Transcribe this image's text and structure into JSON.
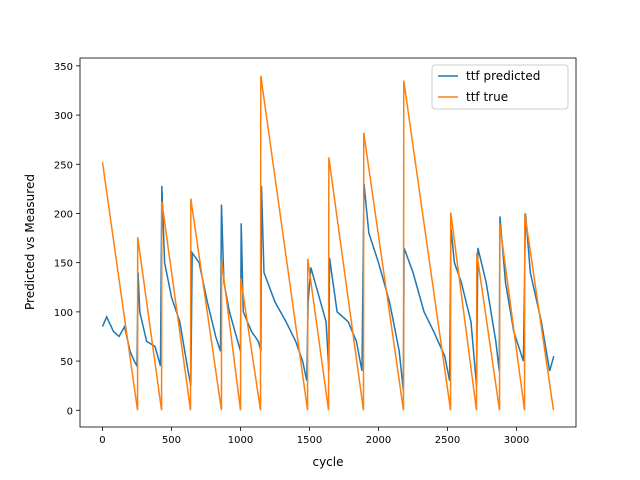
{
  "chart_data": {
    "type": "line",
    "xlabel": "cycle",
    "ylabel": "Predicted vs Measured",
    "xlim": [
      -163,
      3431
    ],
    "ylim": [
      -17,
      358
    ],
    "xticks": [
      0,
      500,
      1000,
      1500,
      2000,
      2500,
      3000
    ],
    "yticks": [
      0,
      50,
      100,
      150,
      200,
      250,
      300,
      350
    ],
    "legend": "upper right",
    "series": [
      {
        "name": "ttf predicted",
        "color": "#1f77b4",
        "x": [
          0,
          30,
          80,
          120,
          160,
          200,
          230,
          250,
          258,
          270,
          320,
          380,
          420,
          430,
          450,
          500,
          560,
          620,
          640,
          650,
          700,
          760,
          820,
          855,
          862,
          880,
          920,
          980,
          1000,
          1005,
          1020,
          1080,
          1130,
          1148,
          1152,
          1170,
          1250,
          1330,
          1400,
          1450,
          1480,
          1490,
          1510,
          1560,
          1620,
          1640,
          1645,
          1700,
          1780,
          1840,
          1880,
          1895,
          1930,
          2000,
          2080,
          2150,
          2180,
          2185,
          2250,
          2330,
          2400,
          2480,
          2515,
          2525,
          2550,
          2600,
          2670,
          2710,
          2720,
          2780,
          2850,
          2875,
          2880,
          2920,
          2980,
          3050,
          3065,
          3100,
          3180,
          3240,
          3270
        ],
        "values": [
          85,
          95,
          80,
          75,
          85,
          60,
          50,
          45,
          140,
          100,
          70,
          65,
          45,
          228,
          150,
          115,
          90,
          40,
          25,
          160,
          150,
          110,
          75,
          60,
          209,
          130,
          100,
          70,
          60,
          190,
          100,
          80,
          70,
          60,
          228,
          140,
          110,
          90,
          70,
          50,
          30,
          110,
          145,
          120,
          90,
          40,
          155,
          100,
          90,
          70,
          40,
          230,
          180,
          150,
          110,
          60,
          20,
          165,
          140,
          100,
          80,
          55,
          30,
          185,
          150,
          130,
          90,
          25,
          165,
          130,
          70,
          40,
          197,
          130,
          80,
          50,
          200,
          140,
          90,
          40,
          55
        ]
      },
      {
        "name": "ttf true",
        "color": "#ff7f0e",
        "x": [
          0,
          254,
          255,
          428,
          430,
          638,
          640,
          862,
          863,
          1000,
          1002,
          1145,
          1147,
          1486,
          1487,
          1638,
          1640,
          1891,
          1893,
          2181,
          2183,
          2522,
          2523,
          2710,
          2712,
          2877,
          2878,
          3058,
          3060,
          3268
        ],
        "values": [
          252,
          0,
          176,
          0,
          212,
          0,
          215,
          0,
          152,
          0,
          134,
          0,
          340,
          0,
          154,
          0,
          257,
          0,
          282,
          0,
          335,
          0,
          201,
          0,
          160,
          0,
          190,
          0,
          200,
          0
        ]
      }
    ]
  }
}
